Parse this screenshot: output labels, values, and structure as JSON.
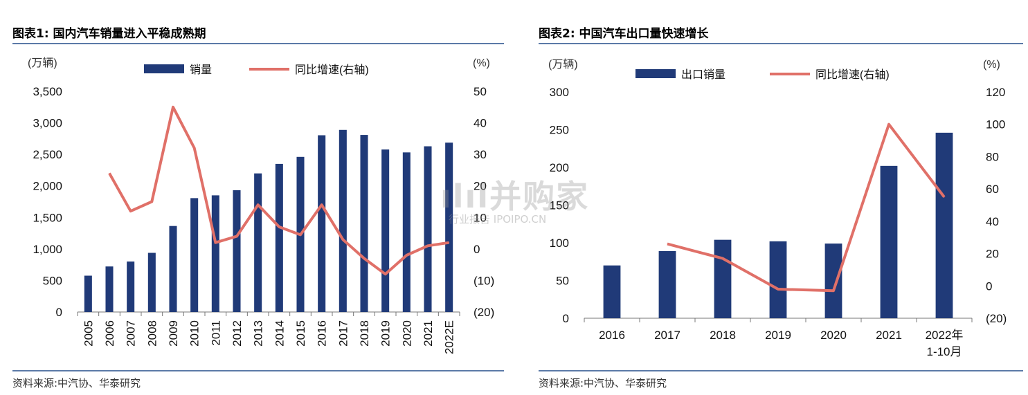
{
  "charts": [
    {
      "figure_title": "图表1:  国内汽车销量进入平稳成熟期",
      "source": "资料来源:中汽协、华泰研究",
      "left_unit": "(万辆)",
      "right_unit": "(%)",
      "legend": {
        "bar": "销量",
        "line": "同比增速(右轴)"
      },
      "left_ticks": [
        "3,500",
        "3,000",
        "2,500",
        "2,000",
        "1,500",
        "1,000",
        "500",
        "0"
      ],
      "right_ticks": [
        "50",
        "40",
        "30",
        "20",
        "10",
        "0",
        "(10)",
        "(20)"
      ]
    },
    {
      "figure_title": "图表2:  中国汽车出口量快速增长",
      "source": "资料来源:中汽协、华泰研究",
      "left_unit": "(万辆)",
      "right_unit": "(%)",
      "legend": {
        "bar": "出口销量",
        "line": "同比增速(右轴)"
      },
      "left_ticks": [
        "300",
        "250",
        "200",
        "150",
        "100",
        "50",
        "0"
      ],
      "right_ticks": [
        "120",
        "100",
        "80",
        "60",
        "40",
        "20",
        "0",
        "(20)"
      ]
    }
  ],
  "chart_data": [
    {
      "type": "bar",
      "categories": [
        "2005",
        "2006",
        "2007",
        "2008",
        "2009",
        "2010",
        "2011",
        "2012",
        "2013",
        "2014",
        "2015",
        "2016",
        "2017",
        "2018",
        "2019",
        "2020",
        "2021",
        "2022E"
      ],
      "series": [
        {
          "name": "销量",
          "type": "bar",
          "axis": "left",
          "values": [
            576,
            722,
            800,
            938,
            1364,
            1806,
            1850,
            1931,
            2198,
            2349,
            2460,
            2803,
            2888,
            2808,
            2577,
            2531,
            2628,
            2686
          ]
        },
        {
          "name": "同比增速(右轴)",
          "type": "line",
          "axis": "right",
          "values": [
            null,
            24,
            12,
            15,
            45,
            32,
            2,
            4,
            14,
            7,
            4.5,
            14,
            3,
            -3,
            -8,
            -2,
            1,
            2
          ]
        }
      ],
      "ylim_left": [
        0,
        3500
      ],
      "ylim_right": [
        -20,
        50
      ],
      "colors": {
        "bar": "#203a78",
        "line": "#e07068"
      }
    },
    {
      "type": "bar",
      "categories": [
        "2016",
        "2017",
        "2018",
        "2019",
        "2020",
        "2021",
        "2022年\n1-10月"
      ],
      "series": [
        {
          "name": "出口销量",
          "type": "bar",
          "axis": "left",
          "values": [
            70,
            89,
            104,
            102,
            99,
            202,
            246
          ]
        },
        {
          "name": "同比增速(右轴)",
          "type": "line",
          "axis": "right",
          "values": [
            null,
            26,
            17,
            -2,
            -3,
            100,
            55
          ]
        }
      ],
      "ylim_left": [
        0,
        300
      ],
      "ylim_right": [
        -20,
        120
      ],
      "colors": {
        "bar": "#203a78",
        "line": "#e07068"
      }
    }
  ]
}
